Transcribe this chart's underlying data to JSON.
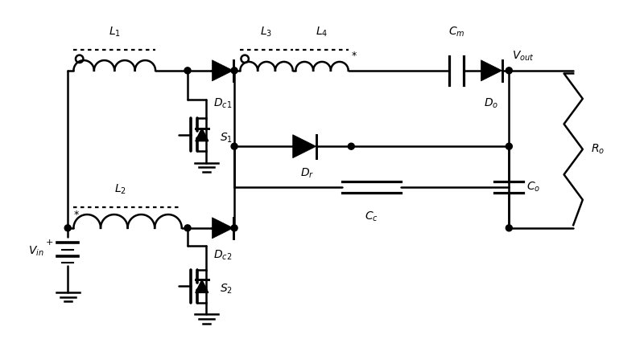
{
  "fig_width": 8.0,
  "fig_height": 4.37,
  "dpi": 100,
  "lw": 1.8,
  "color": "black",
  "bg": "white",
  "xlim": [
    0,
    100
  ],
  "ylim": [
    0,
    60
  ]
}
